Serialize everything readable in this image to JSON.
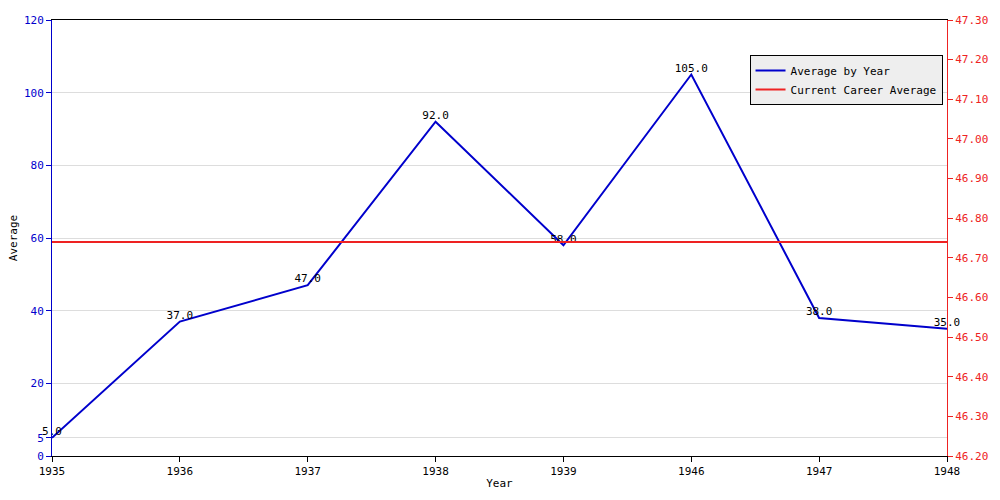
{
  "chart_data": {
    "type": "line",
    "x_label": "Year",
    "y_label": "Average",
    "categories": [
      "1935",
      "1936",
      "1937",
      "1938",
      "1939",
      "1946",
      "1947",
      "1948"
    ],
    "series": [
      {
        "name": "Average by Year",
        "color": "#0000cc",
        "type": "line",
        "data_labels": true,
        "values": [
          5,
          37,
          47,
          92,
          58,
          105,
          38,
          35
        ],
        "value_labels": [
          "5.0",
          "37.0",
          "47.0",
          "92.0",
          "58.0",
          "105.0",
          "38.0",
          "35.0"
        ]
      },
      {
        "name": "Current Career Average",
        "color": "#ee2222",
        "type": "line",
        "axis": "y2",
        "data_labels": false,
        "values": [
          46.74,
          46.74,
          46.74,
          46.74,
          46.74,
          46.74,
          46.74,
          46.74
        ]
      }
    ],
    "ylim": [
      0,
      120
    ],
    "yticks": [
      0,
      5,
      20,
      40,
      60,
      80,
      100,
      120
    ],
    "y2lim": [
      46.2,
      47.3
    ],
    "y2ticks": [
      {
        "value": 46.2,
        "label": "46.20"
      },
      {
        "value": 46.3,
        "label": "46.30"
      },
      {
        "value": 46.4,
        "label": "46.40"
      },
      {
        "value": 46.5,
        "label": "46.50"
      },
      {
        "value": 46.6,
        "label": "46.60"
      },
      {
        "value": 46.7,
        "label": "46.70"
      },
      {
        "value": 46.8,
        "label": "46.80"
      },
      {
        "value": 46.9,
        "label": "46.90"
      },
      {
        "value": 47.0,
        "label": "47.00"
      },
      {
        "value": 47.1,
        "label": "47.10"
      },
      {
        "value": 47.2,
        "label": "47.20"
      },
      {
        "value": 47.3,
        "label": "47.30"
      }
    ],
    "grid": true,
    "legend": "upper right"
  }
}
